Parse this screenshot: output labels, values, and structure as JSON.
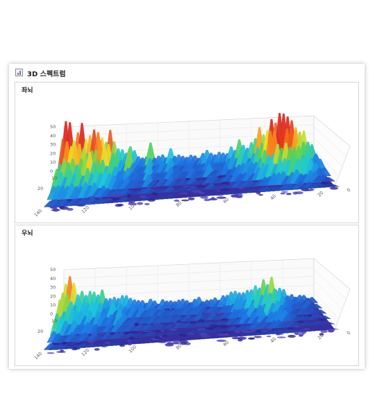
{
  "window": {
    "title": "3D 스펙트럼",
    "icon": "chart-icon"
  },
  "panels": [
    {
      "label": "좌뇌",
      "z_ticks": [
        "50",
        "40",
        "30",
        "20",
        "10",
        "0"
      ],
      "y_ticks": [
        "10",
        "20"
      ],
      "x_ticks": [
        "140",
        "120",
        "100",
        "80",
        "60",
        "40",
        "20",
        "0"
      ],
      "profile": [
        52,
        50,
        48,
        50,
        49,
        47,
        46,
        50,
        44,
        46,
        42,
        40,
        36,
        30,
        24,
        22,
        34,
        20,
        16,
        14,
        18,
        26,
        14,
        12,
        16,
        14,
        22,
        14,
        13,
        12,
        14,
        16,
        13,
        12,
        12,
        20,
        14,
        12,
        13,
        16,
        14,
        22,
        18,
        26,
        24,
        20,
        30,
        36,
        40,
        44,
        46,
        48,
        42,
        50,
        50,
        48,
        46,
        40,
        36,
        30,
        26,
        20
      ]
    },
    {
      "label": "우뇌",
      "z_ticks": [
        "50",
        "40",
        "30",
        "20",
        "10",
        "0"
      ],
      "y_ticks": [
        "10",
        "20"
      ],
      "x_ticks": [
        "140",
        "120",
        "100",
        "80",
        "60",
        "40",
        "20",
        "0"
      ],
      "profile": [
        46,
        40,
        34,
        30,
        32,
        28,
        24,
        30,
        22,
        26,
        20,
        18,
        22,
        16,
        24,
        18,
        14,
        16,
        12,
        14,
        12,
        14,
        12,
        10,
        12,
        10,
        11,
        10,
        12,
        10,
        11,
        10,
        10,
        12,
        11,
        10,
        12,
        11,
        10,
        12,
        14,
        16,
        20,
        22,
        18,
        24,
        20,
        26,
        22,
        34,
        28,
        30,
        24,
        20,
        18,
        14,
        12,
        10,
        10,
        10,
        8,
        8
      ]
    }
  ],
  "colors": {
    "surface_base": "#3a2f9e",
    "panel_border": "#d4d4d4"
  }
}
